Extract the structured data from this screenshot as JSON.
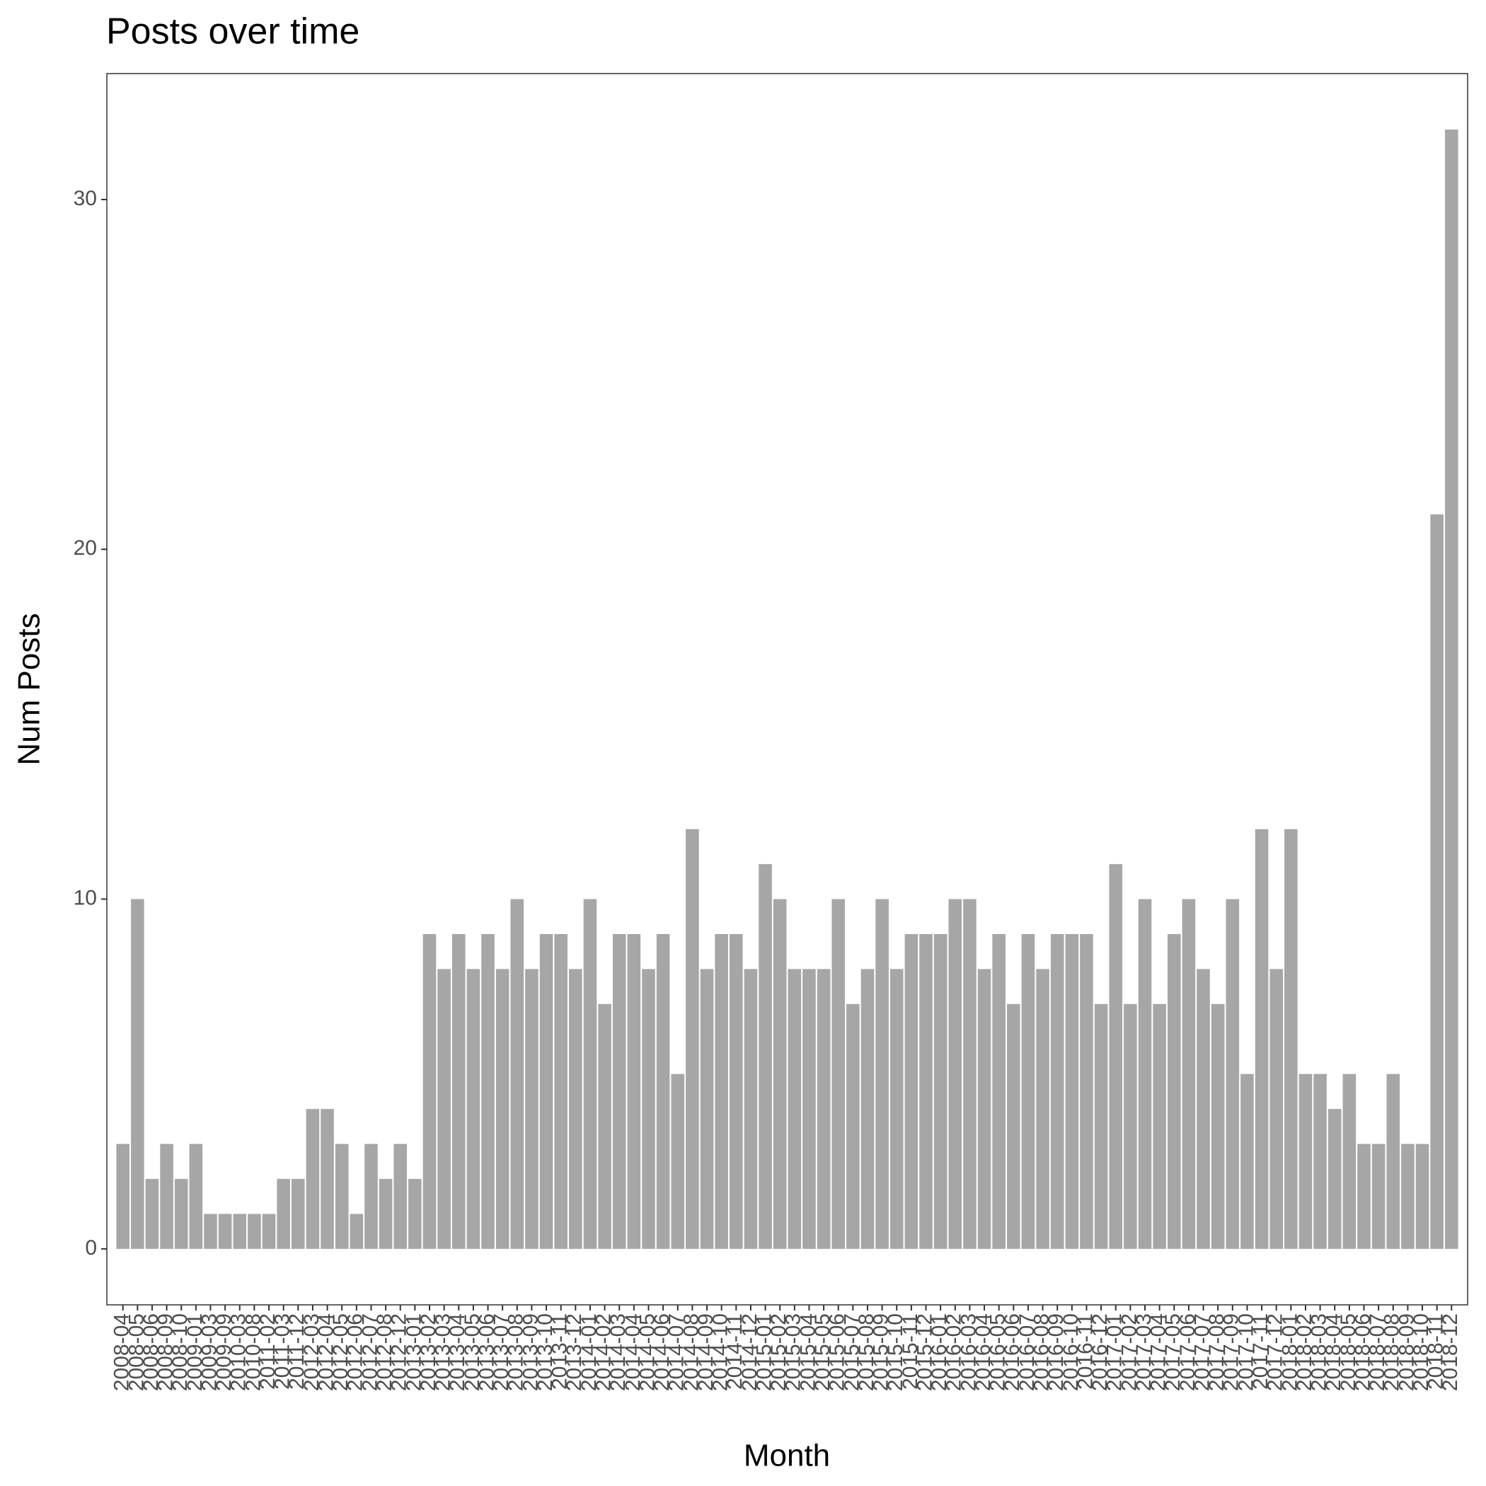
{
  "chart_data": {
    "type": "bar",
    "title": "Posts over time",
    "x_label": "Month",
    "y_label": "Num Posts",
    "categories": [
      "2008-04",
      "2008-05",
      "2008-06",
      "2008-09",
      "2008-10",
      "2009-01",
      "2009-03",
      "2009-09",
      "2010-03",
      "2010-08",
      "2011-02",
      "2011-03",
      "2011-12",
      "2012-03",
      "2012-04",
      "2012-05",
      "2012-06",
      "2012-07",
      "2012-08",
      "2012-12",
      "2013-01",
      "2013-02",
      "2013-03",
      "2013-04",
      "2013-05",
      "2013-06",
      "2013-07",
      "2013-08",
      "2013-09",
      "2013-10",
      "2013-11",
      "2013-12",
      "2014-01",
      "2014-02",
      "2014-03",
      "2014-04",
      "2014-05",
      "2014-06",
      "2014-07",
      "2014-08",
      "2014-09",
      "2014-10",
      "2014-11",
      "2014-12",
      "2015-01",
      "2015-02",
      "2015-03",
      "2015-04",
      "2015-05",
      "2015-06",
      "2015-07",
      "2015-08",
      "2015-09",
      "2015-10",
      "2015-11",
      "2015-12",
      "2016-01",
      "2016-02",
      "2016-03",
      "2016-04",
      "2016-05",
      "2016-06",
      "2016-07",
      "2016-08",
      "2016-09",
      "2016-10",
      "2016-11",
      "2016-12",
      "2017-01",
      "2017-02",
      "2017-03",
      "2017-04",
      "2017-05",
      "2017-06",
      "2017-07",
      "2017-08",
      "2017-09",
      "2017-10",
      "2017-11",
      "2017-12",
      "2018-01",
      "2018-02",
      "2018-03",
      "2018-04",
      "2018-05",
      "2018-06",
      "2018-07",
      "2018-08",
      "2018-09",
      "2018-10",
      "2018-11",
      "2018-12"
    ],
    "values": [
      3,
      10,
      2,
      3,
      2,
      3,
      1,
      1,
      1,
      1,
      1,
      2,
      2,
      4,
      4,
      3,
      1,
      3,
      2,
      3,
      2,
      9,
      8,
      9,
      8,
      9,
      8,
      10,
      8,
      9,
      9,
      8,
      10,
      7,
      9,
      9,
      8,
      9,
      5,
      12,
      8,
      9,
      9,
      8,
      11,
      10,
      8,
      8,
      8,
      10,
      7,
      8,
      10,
      8,
      9,
      9,
      9,
      10,
      10,
      8,
      9,
      7,
      9,
      8,
      9,
      9,
      9,
      7,
      11,
      7,
      10,
      7,
      9,
      10,
      8,
      7,
      10,
      5,
      12,
      8,
      12,
      5,
      5,
      4,
      5,
      3,
      3,
      5,
      3,
      3,
      21,
      32
    ],
    "color": "#a6a6a6",
    "ylim": [
      -1.6,
      33.6
    ],
    "yticks": [
      0,
      10,
      20,
      30
    ],
    "grid": false
  }
}
